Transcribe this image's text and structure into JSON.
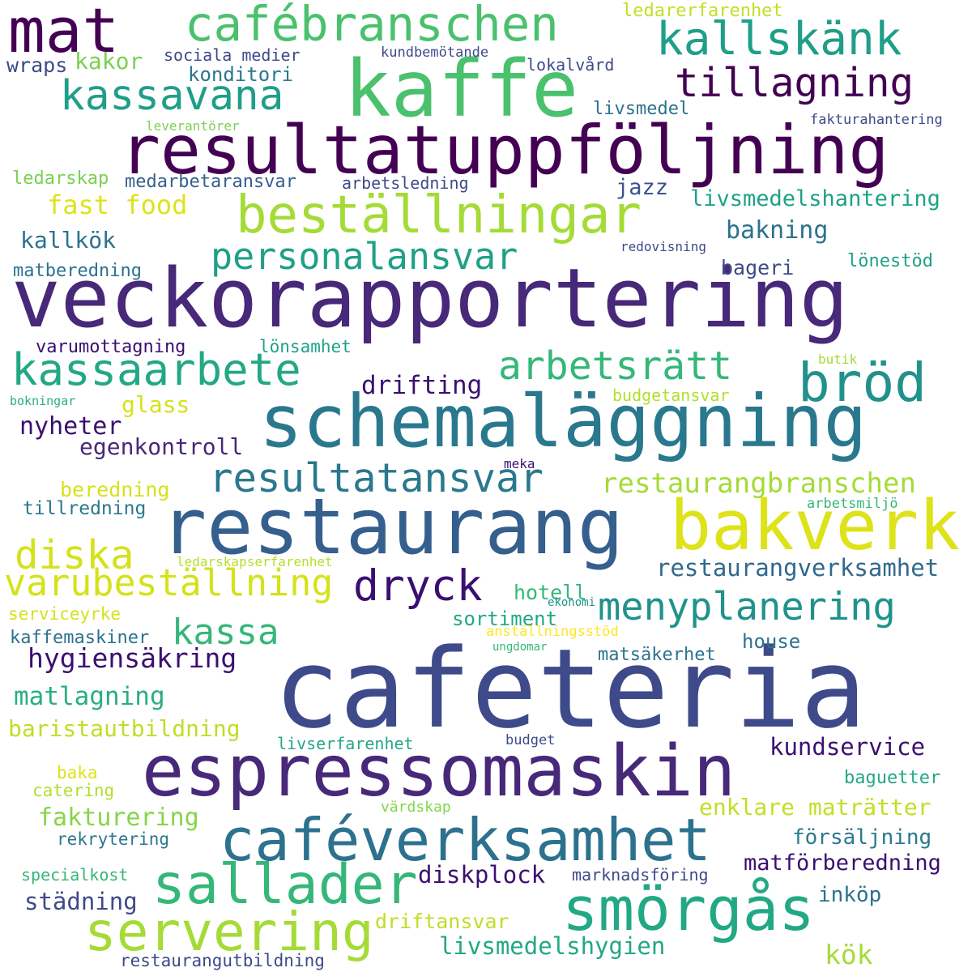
{
  "words": [
    {
      "text": "veckorapportering",
      "color": "#482878"
    },
    {
      "text": "cafeteria",
      "color": "#3e4a89"
    },
    {
      "text": "restaurang",
      "color": "#355f8d"
    },
    {
      "text": "resultatuppföljning",
      "color": "#440154"
    },
    {
      "text": "kaffe",
      "color": "#4ac16d"
    },
    {
      "text": "schemaläggning",
      "color": "#2a788e"
    },
    {
      "text": "espressomaskin",
      "color": "#482878"
    },
    {
      "text": "bakverk",
      "color": "#dde318"
    },
    {
      "text": "beställningar",
      "color": "#a5db36"
    },
    {
      "text": "caféverksamhet",
      "color": "#2c728e"
    },
    {
      "text": "mat",
      "color": "#440154"
    },
    {
      "text": "cafébranschen",
      "color": "#4ac16d"
    },
    {
      "text": "smörgås",
      "color": "#22a884"
    },
    {
      "text": "sallader",
      "color": "#35b779"
    },
    {
      "text": "servering",
      "color": "#a5db36"
    },
    {
      "text": "bröd",
      "color": "#21918c"
    },
    {
      "text": "kallskänk",
      "color": "#1f9e89"
    },
    {
      "text": "tillagning",
      "color": "#440154"
    },
    {
      "text": "kassavana",
      "color": "#1f9e89"
    },
    {
      "text": "kassaarbete",
      "color": "#22a884"
    },
    {
      "text": "arbetsrätt",
      "color": "#35b779"
    },
    {
      "text": "personalansvar",
      "color": "#1fa187"
    },
    {
      "text": "resultatansvar",
      "color": "#2a788e"
    },
    {
      "text": "menyplanering",
      "color": "#20928c"
    },
    {
      "text": "varubeställning",
      "color": "#d5e21a"
    },
    {
      "text": "dryck",
      "color": "#3b0f70"
    },
    {
      "text": "diska",
      "color": "#d5e21a"
    },
    {
      "text": "kassa",
      "color": "#35b779"
    },
    {
      "text": "restaurangbranschen",
      "color": "#a5db36"
    },
    {
      "text": "restaurangverksamhet",
      "color": "#31688e"
    },
    {
      "text": "hygiensäkring",
      "color": "#3b0f70"
    },
    {
      "text": "matlagning",
      "color": "#29af7f"
    },
    {
      "text": "baristautbildning",
      "color": "#bddf26"
    },
    {
      "text": "kundservice",
      "color": "#3b0f70"
    },
    {
      "text": "fakturering",
      "color": "#86d549"
    },
    {
      "text": "enklare maträtter",
      "color": "#c2df23"
    },
    {
      "text": "diskplock",
      "color": "#3b0f70"
    },
    {
      "text": "livsmedelshygien",
      "color": "#22a884"
    },
    {
      "text": "städning",
      "color": "#3e4a89"
    },
    {
      "text": "matförberedning",
      "color": "#3b0f70"
    },
    {
      "text": "försäljning",
      "color": "#2a788e"
    },
    {
      "text": "inköp",
      "color": "#2c728e"
    },
    {
      "text": "kök",
      "color": "#a5db36"
    },
    {
      "text": "driftansvar",
      "color": "#bddf26"
    },
    {
      "text": "livsmedelshantering",
      "color": "#1fa187"
    },
    {
      "text": "fast food",
      "color": "#dde318"
    },
    {
      "text": "drifting",
      "color": "#3b0f70"
    },
    {
      "text": "kakor",
      "color": "#7ad151"
    },
    {
      "text": "wraps",
      "color": "#3e4a89"
    },
    {
      "text": "konditori",
      "color": "#2a788e"
    },
    {
      "text": "sociala medier",
      "color": "#3e4a89"
    },
    {
      "text": "ledarerfarenhet",
      "color": "#c2df23"
    },
    {
      "text": "kundbemötande",
      "color": "#3e4a89"
    },
    {
      "text": "lokalvård",
      "color": "#3e4a89"
    },
    {
      "text": "livsmedel",
      "color": "#2c728e"
    },
    {
      "text": "leverantörer",
      "color": "#7ad151"
    },
    {
      "text": "fakturahantering",
      "color": "#3e4a89"
    },
    {
      "text": "ledarskap",
      "color": "#7ad151"
    },
    {
      "text": "medarbetaransvar",
      "color": "#355f8d"
    },
    {
      "text": "arbetsledning",
      "color": "#3e4a89"
    },
    {
      "text": "jazz",
      "color": "#3b528b"
    },
    {
      "text": "kallkök",
      "color": "#2c728e"
    },
    {
      "text": "bakning",
      "color": "#2c728e"
    },
    {
      "text": "redovisning",
      "color": "#3e4a89"
    },
    {
      "text": "bageri",
      "color": "#3e4a89"
    },
    {
      "text": "lönestöd",
      "color": "#1fa187"
    },
    {
      "text": "matberedning",
      "color": "#2c728e"
    },
    {
      "text": "varumottagning",
      "color": "#3b0f70"
    },
    {
      "text": "lönsamhet",
      "color": "#1fa187"
    },
    {
      "text": "butik",
      "color": "#a5db36"
    },
    {
      "text": "bokningar",
      "color": "#29af7f"
    },
    {
      "text": "glass",
      "color": "#d5e21a"
    },
    {
      "text": "budgetansvar",
      "color": "#b5de2b"
    },
    {
      "text": "nyheter",
      "color": "#3b0f70"
    },
    {
      "text": "egenkontroll",
      "color": "#482878"
    },
    {
      "text": "meka",
      "color": "#3b0f70"
    },
    {
      "text": "beredning",
      "color": "#d5e21a"
    },
    {
      "text": "tillredning",
      "color": "#2a788e"
    },
    {
      "text": "arbetsmiljö",
      "color": "#35b779"
    },
    {
      "text": "ledarskapserfarenhet",
      "color": "#b5de2b"
    },
    {
      "text": "hotell",
      "color": "#35b779"
    },
    {
      "text": "restaurangutbildning",
      "color": "#3b0f70"
    },
    {
      "text": "serviceyrke",
      "color": "#d5e21a"
    },
    {
      "text": "ekonomi",
      "color": "#21918c"
    },
    {
      "text": "sortiment",
      "color": "#22a884"
    },
    {
      "text": "kaffemaskiner",
      "color": "#2c728e"
    },
    {
      "text": "anställningsstöd",
      "color": "#fde725"
    },
    {
      "text": "ungdomar",
      "color": "#35b779"
    },
    {
      "text": "matsäkerhet",
      "color": "#2c728e"
    },
    {
      "text": "house",
      "color": "#2c728e"
    },
    {
      "text": "livserfarenhet",
      "color": "#22a884"
    },
    {
      "text": "budget",
      "color": "#3e4a89"
    },
    {
      "text": "baka",
      "color": "#dde318"
    },
    {
      "text": "catering",
      "color": "#b5de2b"
    },
    {
      "text": "baguetter",
      "color": "#22a884"
    },
    {
      "text": "värdskap",
      "color": "#86d549"
    },
    {
      "text": "rekrytering",
      "color": "#2a788e"
    },
    {
      "text": "marknadsföring",
      "color": "#3e4a89"
    },
    {
      "text": "specialkost",
      "color": "#35b779"
    }
  ]
}
